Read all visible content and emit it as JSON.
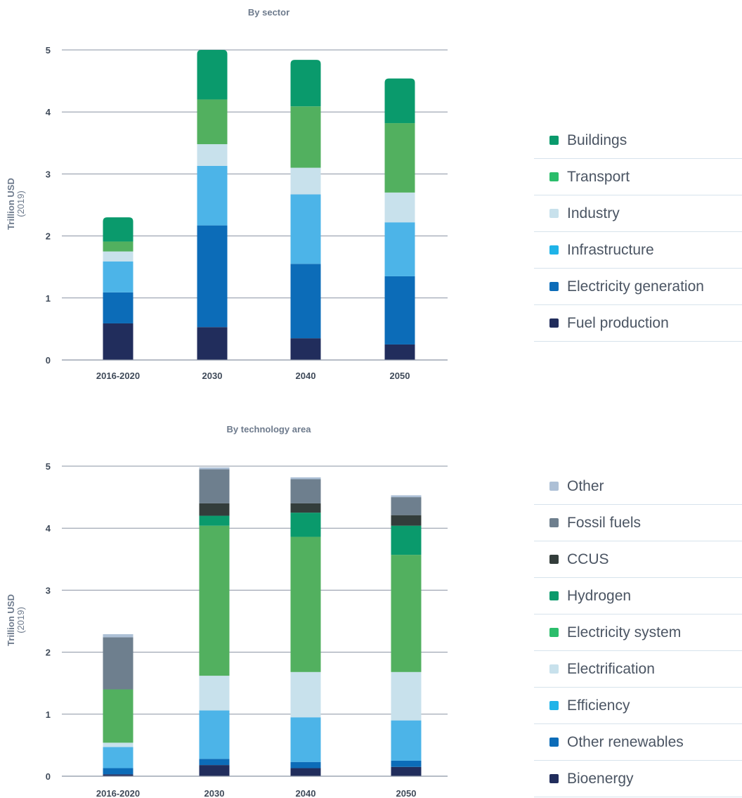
{
  "chart_data": [
    {
      "type": "bar",
      "stacked": true,
      "title": "By sector",
      "ylabel": "Trillion USD",
      "ylabel_sub": "(2019)",
      "ylim": [
        0,
        5
      ],
      "yticks": [
        0,
        1,
        2,
        3,
        4,
        5
      ],
      "grid": true,
      "legend_position": "right",
      "categories": [
        "2016-2020",
        "2030",
        "2040",
        "2050"
      ],
      "series": [
        {
          "name": "Fuel production",
          "color": "#212d5c",
          "values": [
            0.59,
            0.53,
            0.35,
            0.25
          ]
        },
        {
          "name": "Electricity generation",
          "color": "#0c6cb8",
          "values": [
            0.5,
            1.64,
            1.2,
            1.1
          ]
        },
        {
          "name": "Infrastructure",
          "color": "#4cb4e8",
          "values": [
            0.5,
            0.96,
            1.12,
            0.87
          ]
        },
        {
          "name": "Industry",
          "color": "#c8e1ec",
          "values": [
            0.16,
            0.35,
            0.43,
            0.48
          ]
        },
        {
          "name": "Transport",
          "color": "#52b05f",
          "values": [
            0.16,
            0.72,
            0.99,
            1.12
          ]
        },
        {
          "name": "Buildings",
          "color": "#0a9a6c",
          "values": [
            0.39,
            0.8,
            0.75,
            0.72
          ]
        }
      ]
    },
    {
      "type": "bar",
      "stacked": true,
      "title": "By technology area",
      "ylabel": "Trillion USD",
      "ylabel_sub": "(2019)",
      "ylim": [
        0,
        5
      ],
      "yticks": [
        0,
        1,
        2,
        3,
        4,
        5
      ],
      "grid": true,
      "legend_position": "right",
      "categories": [
        "2016-2020",
        "2030",
        "2040",
        "2050"
      ],
      "series": [
        {
          "name": "Bioenergy",
          "color": "#212d5c",
          "values": [
            0.03,
            0.18,
            0.13,
            0.15
          ]
        },
        {
          "name": "Other renewables",
          "color": "#0c6cb8",
          "values": [
            0.1,
            0.1,
            0.1,
            0.1
          ]
        },
        {
          "name": "Efficiency",
          "color": "#4cb4e8",
          "values": [
            0.34,
            0.78,
            0.72,
            0.65
          ]
        },
        {
          "name": "Electrification",
          "color": "#c8e1ec",
          "values": [
            0.07,
            0.56,
            0.73,
            0.78
          ]
        },
        {
          "name": "Electricity system",
          "color": "#52b05f",
          "values": [
            0.86,
            2.42,
            2.18,
            1.89
          ]
        },
        {
          "name": "Hydrogen",
          "color": "#0a9a6c",
          "values": [
            0,
            0.16,
            0.39,
            0.47
          ]
        },
        {
          "name": "CCUS",
          "color": "#333d3b",
          "values": [
            0,
            0.2,
            0.15,
            0.17
          ]
        },
        {
          "name": "Fossil fuels",
          "color": "#6e7f8e",
          "values": [
            0.84,
            0.55,
            0.39,
            0.29
          ]
        },
        {
          "name": "Other",
          "color": "#adc0d6",
          "values": [
            0.05,
            0.03,
            0.03,
            0.03
          ]
        }
      ]
    }
  ],
  "legends": [
    {
      "items": [
        {
          "label": "Buildings",
          "color": "#0a9a6c"
        },
        {
          "label": "Transport",
          "color": "#2bbd6b"
        },
        {
          "label": "Industry",
          "color": "#c8e1ec"
        },
        {
          "label": "Infrastructure",
          "color": "#1fb3e8"
        },
        {
          "label": "Electricity generation",
          "color": "#0c6cb8"
        },
        {
          "label": "Fuel production",
          "color": "#212d5c"
        }
      ]
    },
    {
      "items": [
        {
          "label": "Other",
          "color": "#adc0d6"
        },
        {
          "label": "Fossil fuels",
          "color": "#6e7f8e"
        },
        {
          "label": "CCUS",
          "color": "#333d3b"
        },
        {
          "label": "Hydrogen",
          "color": "#0a9a6c"
        },
        {
          "label": "Electricity system",
          "color": "#2bbd6b"
        },
        {
          "label": "Electrification",
          "color": "#c8e1ec"
        },
        {
          "label": "Efficiency",
          "color": "#1fb3e8"
        },
        {
          "label": "Other renewables",
          "color": "#0c6cb8"
        },
        {
          "label": "Bioenergy",
          "color": "#212d5c"
        }
      ]
    }
  ]
}
